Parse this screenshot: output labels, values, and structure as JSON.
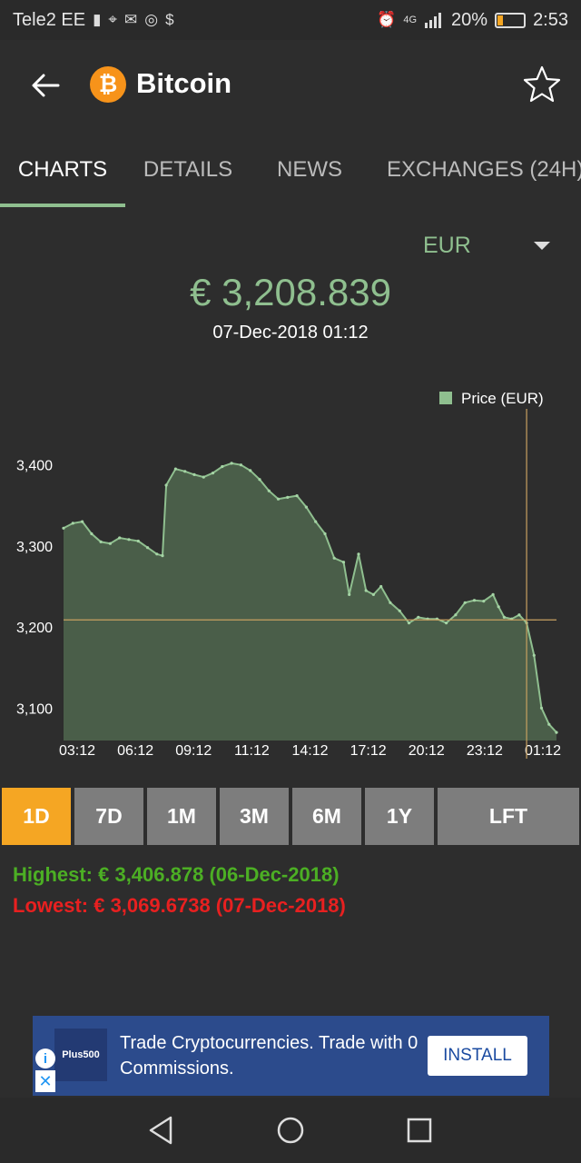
{
  "status_bar": {
    "carrier": "Tele2 EE",
    "network": "4G",
    "battery_percent": "20%",
    "battery_level": 0.2,
    "time": "2:53"
  },
  "app_bar": {
    "title": "Bitcoin",
    "coin_symbol": "₿",
    "coin_color": "#f7931a"
  },
  "tabs": [
    {
      "label": "CHARTS",
      "active": true
    },
    {
      "label": "DETAILS",
      "active": false
    },
    {
      "label": "NEWS",
      "active": false
    },
    {
      "label": "EXCHANGES (24H)",
      "active": false
    }
  ],
  "currency": {
    "selected": "EUR"
  },
  "price": {
    "value": "€ 3,208.839",
    "date": "07-Dec-2018 01:12"
  },
  "range_buttons": [
    {
      "label": "1D",
      "active": true
    },
    {
      "label": "7D",
      "active": false
    },
    {
      "label": "1M",
      "active": false
    },
    {
      "label": "3M",
      "active": false
    },
    {
      "label": "6M",
      "active": false
    },
    {
      "label": "1Y",
      "active": false
    },
    {
      "label": "LFT",
      "active": false
    }
  ],
  "stats": {
    "highest": "Highest: € 3,406.878 (06-Dec-2018)",
    "lowest": "Lowest: € 3,069.6738 (07-Dec-2018)"
  },
  "ad": {
    "logo_text": "Plus500",
    "text": "Trade Cryptocurrencies. Trade with 0 Commissions.",
    "button": "INSTALL",
    "info_glyph": "i",
    "close_glyph": "✕"
  },
  "colors": {
    "accent_green": "#8fbf8f",
    "accent_orange": "#f5a623",
    "high_green": "#4caf24",
    "low_red": "#e82020",
    "crosshair": "#c8a060"
  },
  "chart_data": {
    "type": "area",
    "legend": "Price (EUR)",
    "legend_position": "top-right",
    "x_ticks": [
      "03:12",
      "06:12",
      "09:12",
      "11:12",
      "14:12",
      "17:12",
      "20:12",
      "23:12",
      "01:12"
    ],
    "y_ticks": [
      "3,400",
      "3,300",
      "3,200",
      "3,100"
    ],
    "ylim": [
      3060,
      3440
    ],
    "x_index_range": [
      0,
      24
    ],
    "series": [
      {
        "name": "Price (EUR)",
        "points": [
          [
            0.0,
            3322
          ],
          [
            0.5,
            3328
          ],
          [
            1.0,
            3330
          ],
          [
            1.5,
            3315
          ],
          [
            2.0,
            3305
          ],
          [
            2.5,
            3303
          ],
          [
            3.0,
            3310
          ],
          [
            3.5,
            3308
          ],
          [
            4.0,
            3306
          ],
          [
            4.5,
            3298
          ],
          [
            5.0,
            3290
          ],
          [
            5.3,
            3288
          ],
          [
            5.5,
            3375
          ],
          [
            6.0,
            3395
          ],
          [
            6.5,
            3392
          ],
          [
            7.0,
            3388
          ],
          [
            7.5,
            3385
          ],
          [
            8.0,
            3390
          ],
          [
            8.5,
            3398
          ],
          [
            9.0,
            3402
          ],
          [
            9.5,
            3400
          ],
          [
            10.0,
            3393
          ],
          [
            10.5,
            3382
          ],
          [
            11.0,
            3368
          ],
          [
            11.5,
            3358
          ],
          [
            12.0,
            3360
          ],
          [
            12.5,
            3362
          ],
          [
            13.0,
            3348
          ],
          [
            13.5,
            3330
          ],
          [
            14.0,
            3315
          ],
          [
            14.5,
            3285
          ],
          [
            15.0,
            3280
          ],
          [
            15.3,
            3240
          ],
          [
            15.8,
            3290
          ],
          [
            16.2,
            3245
          ],
          [
            16.6,
            3240
          ],
          [
            17.0,
            3250
          ],
          [
            17.5,
            3230
          ],
          [
            18.0,
            3220
          ],
          [
            18.5,
            3205
          ],
          [
            19.0,
            3212
          ],
          [
            19.5,
            3210
          ],
          [
            20.0,
            3210
          ],
          [
            20.5,
            3205
          ],
          [
            21.0,
            3215
          ],
          [
            21.5,
            3230
          ],
          [
            22.0,
            3233
          ],
          [
            22.5,
            3232
          ],
          [
            23.0,
            3240
          ],
          [
            23.3,
            3225
          ],
          [
            23.6,
            3212
          ],
          [
            24.0,
            3210
          ],
          [
            24.4,
            3215
          ],
          [
            24.8,
            3205
          ],
          [
            25.2,
            3165
          ],
          [
            25.6,
            3100
          ],
          [
            26.0,
            3080
          ],
          [
            26.4,
            3070
          ]
        ]
      }
    ],
    "crosshair": {
      "x_label": "01:12",
      "y_value": 3208.839
    },
    "grid": false
  }
}
